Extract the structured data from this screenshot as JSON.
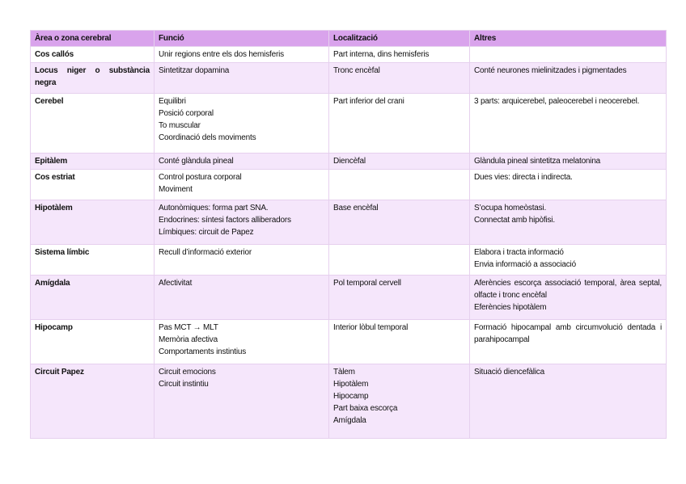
{
  "table": {
    "header": [
      "Àrea o zona cerebral",
      "Funció",
      "Localització",
      "Altres"
    ],
    "rows": [
      [
        [
          "Cos callós"
        ],
        [
          "Unir regions entre els dos hemisferis"
        ],
        [
          "Part interna, dins hemisferis"
        ],
        []
      ],
      [
        [
          "Locus niger o substància negra"
        ],
        [
          "Sintetitzar dopamina"
        ],
        [
          "Tronc encèfal"
        ],
        [
          "Conté neurones mielinitzades i pigmentades"
        ]
      ],
      [
        [
          "Cerebel"
        ],
        [
          "Equilibri",
          "Posició corporal",
          "To muscular",
          "Coordinació dels moviments"
        ],
        [
          "Part inferior del crani"
        ],
        [
          "3 parts: arquicerebel, paleocerebel i neocerebel."
        ]
      ],
      [
        [
          "Epitàlem"
        ],
        [
          "Conté glàndula pineal"
        ],
        [
          "Diencèfal"
        ],
        [
          "Glàndula pineal sintetitza melatonina"
        ]
      ],
      [
        [
          "Cos estriat"
        ],
        [
          "Control postura corporal",
          "Moviment"
        ],
        [],
        [
          "Dues vies: directa i indirecta."
        ]
      ],
      [
        [
          "Hipotàlem"
        ],
        [
          "Autonòmiques: forma part SNA.",
          "Endocrines: síntesi factors alliberadors",
          "Límbiques: circuit de Papez"
        ],
        [
          "Base encèfal"
        ],
        [
          "S’ocupa homeòstasi.",
          "Connectat amb hipòfisi."
        ]
      ],
      [
        [
          "Sistema límbic"
        ],
        [
          "Recull d’informació exterior"
        ],
        [],
        [
          "Elabora i tracta informació",
          "Envia informació a associació"
        ]
      ],
      [
        [
          "Amígdala"
        ],
        [
          "Afectivitat"
        ],
        [
          "Pol temporal cervell"
        ],
        [
          "Aferències escorça associació temporal, àrea septal, olfacte i tronc encèfal",
          "Eferències hipotàlem"
        ]
      ],
      [
        [
          "Hipocamp"
        ],
        [
          "Pas MCT → MLT",
          "Memòria afectiva",
          "Comportaments instintius"
        ],
        [
          "Interior lòbul temporal"
        ],
        [
          "Formació hipocampal amb circumvolució dentada i parahipocampal"
        ]
      ],
      [
        [
          "Circuit Papez"
        ],
        [
          "Circuit emocions",
          "Circuit instintiu"
        ],
        [
          "Tàlem",
          "Hipotàlem",
          "Hipocamp",
          "Part baixa escorça",
          "Amígdala"
        ],
        [
          "Situació diencefàlica"
        ]
      ]
    ]
  }
}
